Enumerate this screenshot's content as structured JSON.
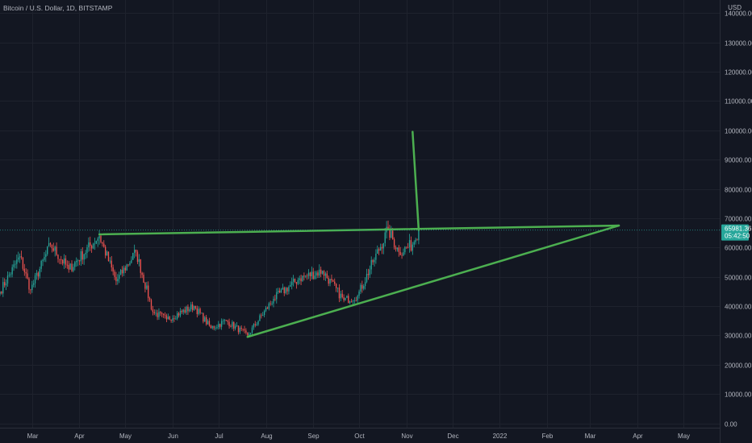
{
  "header": {
    "symbol_title": "Bitcoin / U.S. Dollar, 1D, BITSTAMP"
  },
  "price_scale": {
    "currency": "USD",
    "last_price_label": "65981.36",
    "countdown_label": "05:42:50"
  },
  "colors": {
    "background": "#131722",
    "grid": "#1e222d",
    "text": "#b2b5be",
    "up_candle": "#26a69a",
    "down_candle": "#ef5350",
    "trendline": "#4caf50",
    "last_price_badge": "#26a69a"
  },
  "chart_data": {
    "type": "candlestick",
    "title": "Bitcoin / U.S. Dollar, 1D, BITSTAMP",
    "yaxis": {
      "unit": "USD",
      "ticks": [
        0,
        10000,
        20000,
        30000,
        40000,
        50000,
        60000,
        70000,
        80000,
        90000,
        100000,
        110000,
        120000,
        130000,
        140000
      ],
      "tick_labels": [
        "0.00",
        "10000.00",
        "20000.00",
        "30000.00",
        "40000.00",
        "50000.00",
        "60000.00",
        "70000.00",
        "80000.00",
        "90000.00",
        "100000.00",
        "110000.00",
        "120000.00",
        "130000.00",
        "140000.00"
      ],
      "range": [
        -1500,
        144500
      ]
    },
    "xaxis": {
      "ticks": [
        "2021-03-01",
        "2021-04-01",
        "2021-05-01",
        "2021-06-01",
        "2021-07-01",
        "2021-08-01",
        "2021-09-01",
        "2021-10-01",
        "2021-11-01",
        "2021-12-01",
        "2022-01-01",
        "2022-02-01",
        "2022-03-01",
        "2022-04-01",
        "2022-05-01"
      ],
      "tick_labels": [
        "Mar",
        "Apr",
        "May",
        "Jun",
        "Jul",
        "Aug",
        "Sep",
        "Oct",
        "Nov",
        "Dec",
        "2022",
        "Feb",
        "Mar",
        "Apr",
        "May"
      ],
      "range": [
        "2021-02-08",
        "2022-05-25"
      ]
    },
    "anchors": [
      {
        "date": "2021-02-08",
        "close": 45000
      },
      {
        "date": "2021-02-21",
        "close": 57000
      },
      {
        "date": "2021-02-28",
        "close": 45500
      },
      {
        "date": "2021-03-13",
        "close": 61000
      },
      {
        "date": "2021-03-25",
        "close": 52500
      },
      {
        "date": "2021-04-14",
        "close": 64000
      },
      {
        "date": "2021-04-25",
        "close": 48500
      },
      {
        "date": "2021-05-08",
        "close": 58500
      },
      {
        "date": "2021-05-19",
        "close": 38000
      },
      {
        "date": "2021-05-28",
        "close": 35500
      },
      {
        "date": "2021-06-15",
        "close": 40000
      },
      {
        "date": "2021-06-26",
        "close": 32500
      },
      {
        "date": "2021-07-06",
        "close": 35000
      },
      {
        "date": "2021-07-20",
        "close": 30000
      },
      {
        "date": "2021-08-06",
        "close": 42500
      },
      {
        "date": "2021-08-23",
        "close": 49500
      },
      {
        "date": "2021-09-07",
        "close": 52000
      },
      {
        "date": "2021-09-21",
        "close": 42000
      },
      {
        "date": "2021-09-30",
        "close": 43500
      },
      {
        "date": "2021-10-10",
        "close": 55000
      },
      {
        "date": "2021-10-20",
        "close": 66000
      },
      {
        "date": "2021-10-27",
        "close": 58500
      },
      {
        "date": "2021-11-05",
        "close": 61000
      },
      {
        "date": "2021-11-09",
        "close": 65981.36
      }
    ],
    "drawings": [
      {
        "name": "resistance-line",
        "points": [
          {
            "date": "2021-04-14",
            "price": 64500
          },
          {
            "date": "2022-03-20",
            "price": 67500
          }
        ]
      },
      {
        "name": "support-line",
        "points": [
          {
            "date": "2021-07-20",
            "price": 29500
          },
          {
            "date": "2022-03-20",
            "price": 67500
          }
        ]
      },
      {
        "name": "target-line",
        "points": [
          {
            "date": "2021-11-09",
            "price": 65981.36
          },
          {
            "date": "2021-11-05",
            "price": 99500
          }
        ]
      }
    ],
    "last_price": 65981.36,
    "grid": true
  }
}
